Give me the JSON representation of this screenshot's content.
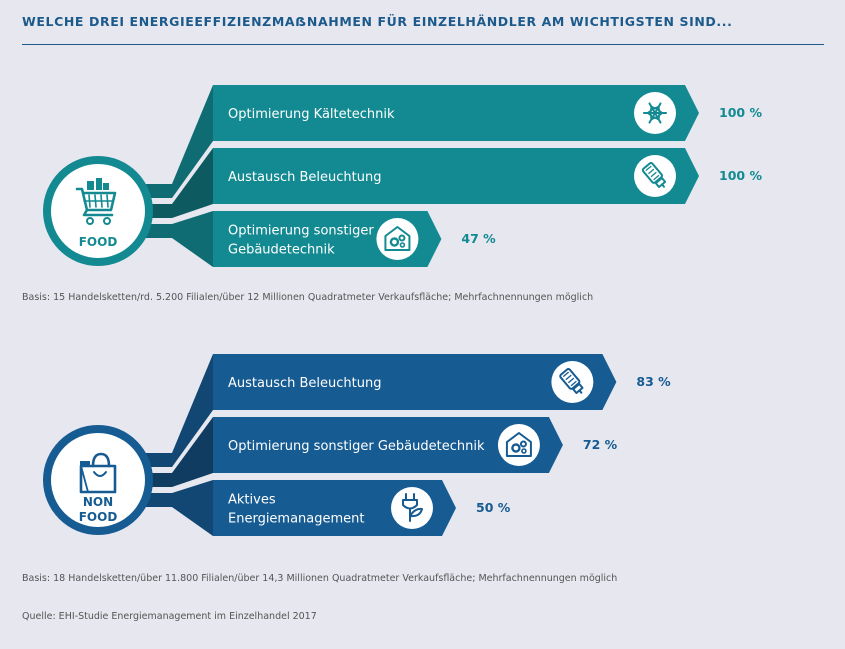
{
  "title": "WELCHE DREI ENERGIEEFFIZIENZMAẞNAHMEN FÜR EINZELHÄNDLER AM WICHTIGSTEN SIND...",
  "chart_data": [
    {
      "type": "bar",
      "category": [
        "FOOD"
      ],
      "color": "#138a92",
      "icon": "shopping-cart-icon",
      "bars": [
        {
          "label": [
            "Optimierung Kältetechnik"
          ],
          "value": 100,
          "value_label": "100 %",
          "icon": "snowflake-icon"
        },
        {
          "label": [
            "Austausch Beleuchtung"
          ],
          "value": 100,
          "value_label": "100 %",
          "icon": "led-bulb-icon"
        },
        {
          "label": [
            "Optimierung sonstiger",
            "Gebäudetechnik"
          ],
          "value": 47,
          "value_label": "47 %",
          "icon": "building-gears-icon"
        }
      ],
      "note": "Basis: 15 Handelsketten/rd. 5.200 Filialen/über 12 Millionen Quadratmeter Verkaufsfläche; Mehrfachnennungen möglich"
    },
    {
      "type": "bar",
      "category": [
        "NON",
        "FOOD"
      ],
      "color": "#165b92",
      "icon": "shopping-bag-icon",
      "bars": [
        {
          "label": [
            "Austausch Beleuchtung"
          ],
          "value": 83,
          "value_label": "83 %",
          "icon": "led-bulb-icon"
        },
        {
          "label": [
            "Optimierung sonstiger Gebäudetechnik"
          ],
          "value": 72,
          "value_label": "72 %",
          "icon": "building-gears-icon"
        },
        {
          "label": [
            "Aktives",
            "Energiemanagement"
          ],
          "value": 50,
          "value_label": "50 %",
          "icon": "plug-leaf-icon"
        }
      ],
      "note": "Basis: 18 Handelsketten/über 11.800 Filialen/über 14,3 Millionen Quadratmeter Verkaufsfläche; Mehrfachnennungen möglich"
    }
  ],
  "source": "Quelle: EHI-Studie Energiemanagement im Einzelhandel 2017"
}
